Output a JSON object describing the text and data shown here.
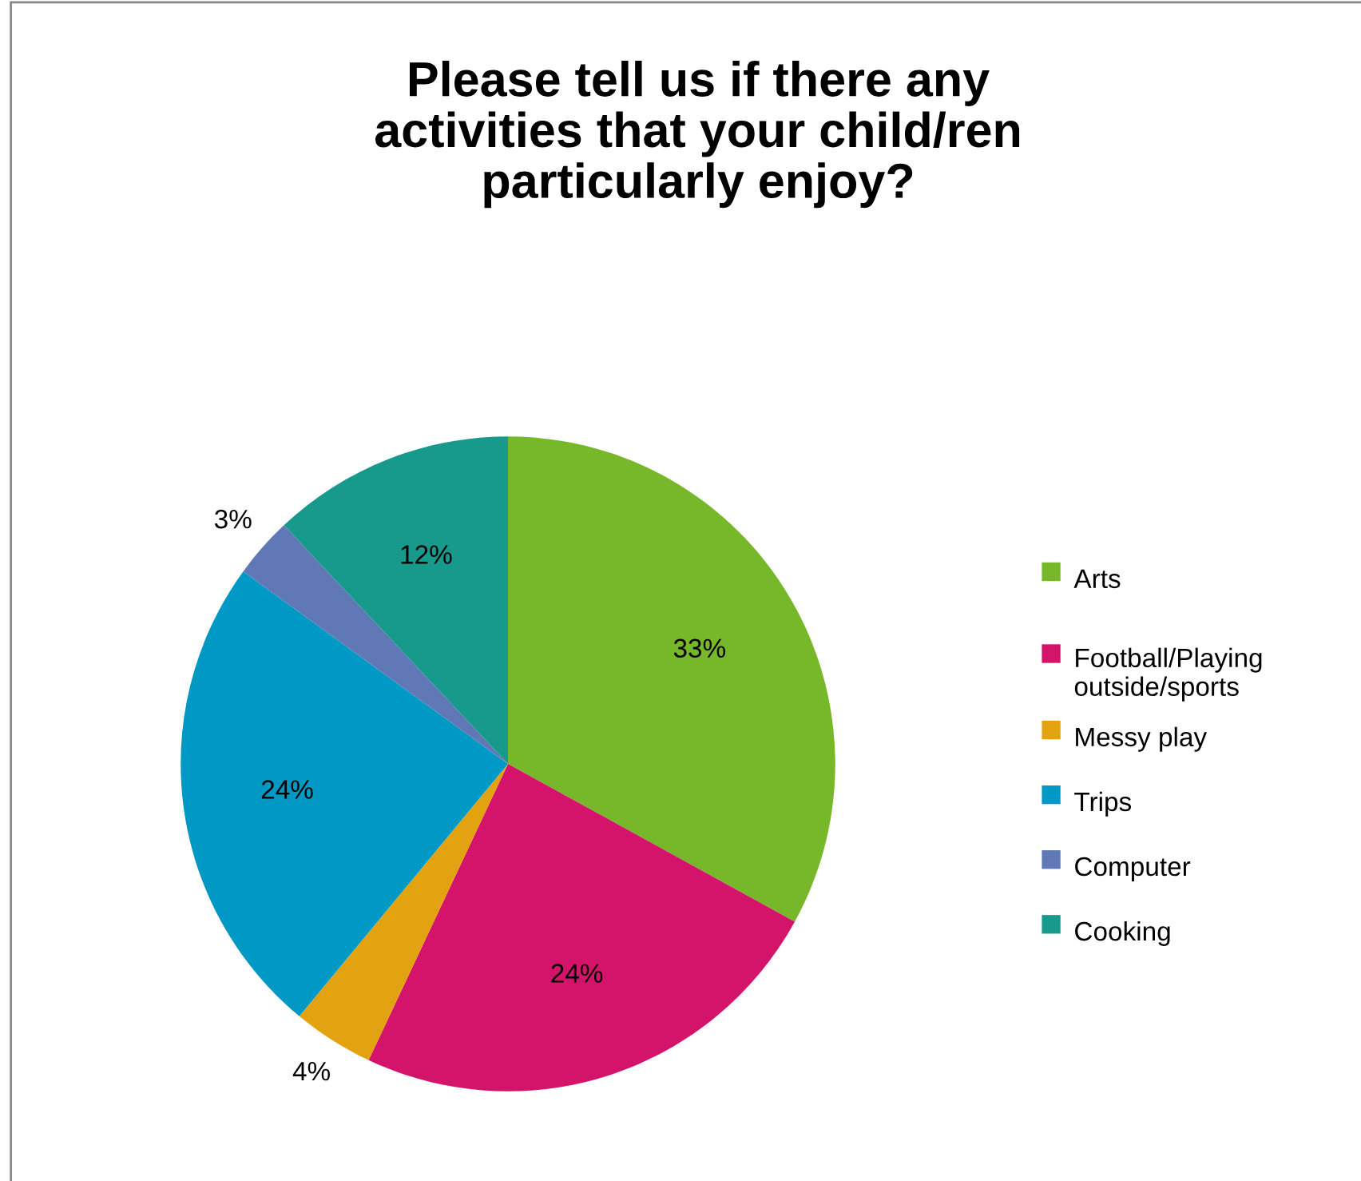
{
  "chart_data": {
    "type": "pie",
    "title": "Please tell us if there any activities that your child/ren particularly enjoy?",
    "categories": [
      "Arts",
      "Football/Playing outside/sports",
      "Messy play",
      "Trips",
      "Computer",
      "Cooking"
    ],
    "values": [
      33,
      24,
      4,
      24,
      3,
      12
    ],
    "value_labels": [
      "33%",
      "24%",
      "4%",
      "24%",
      "3%",
      "12%"
    ],
    "colors": [
      "#76b82a",
      "#d4136b",
      "#e3a20f",
      "#0099c6",
      "#6178b6",
      "#17998b"
    ],
    "legend": "right"
  }
}
